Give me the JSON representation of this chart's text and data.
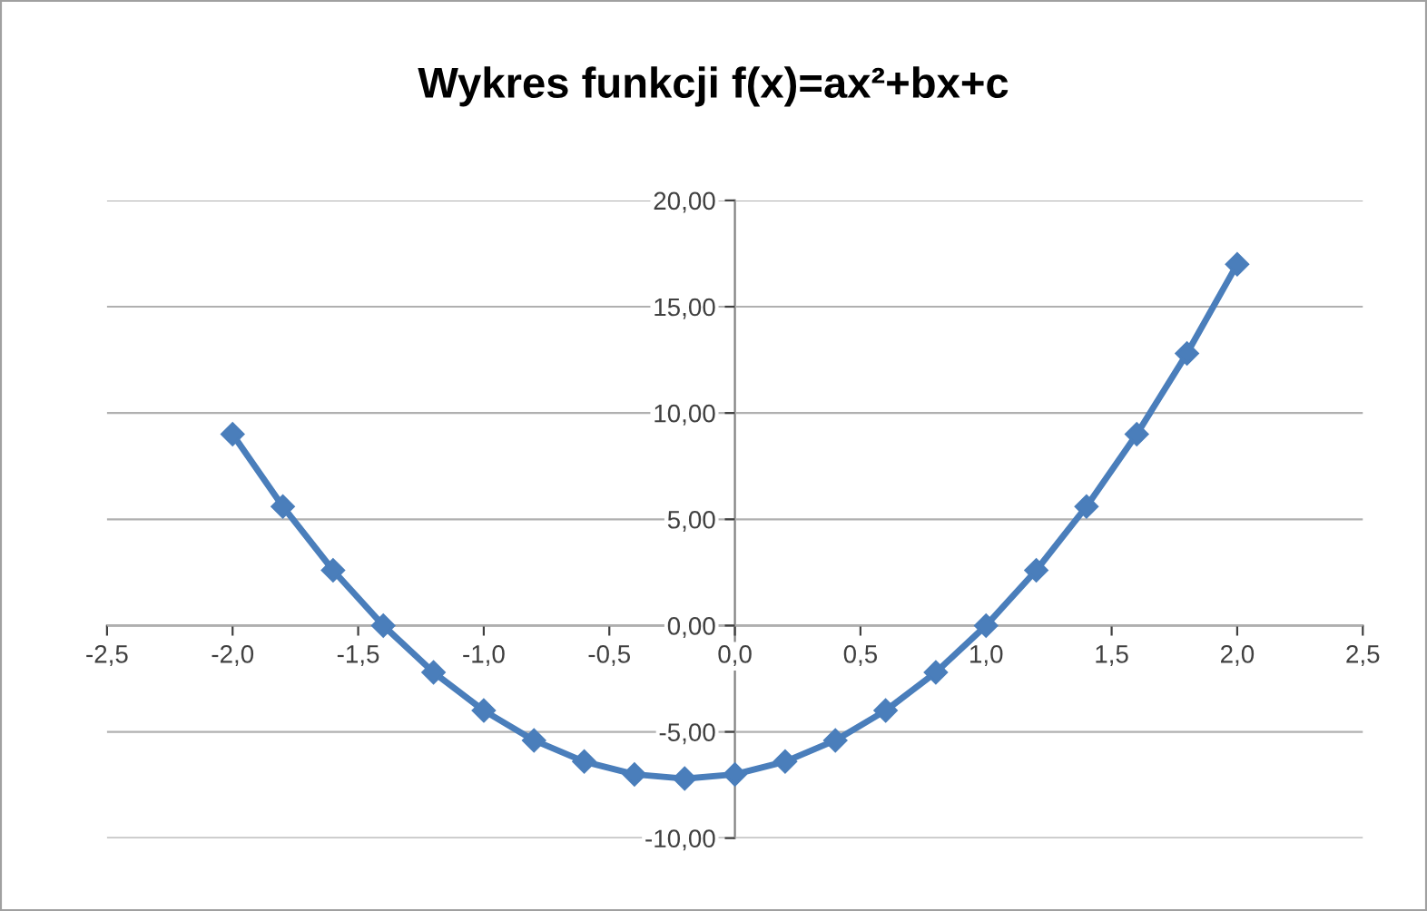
{
  "chart_data": {
    "type": "line",
    "title": "Wykres funkcji f(x)=ax²+bx+c",
    "x": [
      -2.0,
      -1.8,
      -1.6,
      -1.4,
      -1.2,
      -1.0,
      -0.8,
      -0.6,
      -0.4,
      -0.2,
      0.0,
      0.2,
      0.4,
      0.6,
      0.8,
      1.0,
      1.2,
      1.4,
      1.6,
      1.8,
      2.0
    ],
    "series": [
      {
        "color": "#4a7ebb",
        "values": [
          9,
          5.6,
          2.6,
          0,
          -2.2,
          -4,
          -5.4,
          -6.4,
          -7,
          -7.2,
          -7,
          -6.4,
          -5.4,
          -4,
          -2.2,
          0,
          2.6,
          5.6,
          9,
          12.8,
          17
        ]
      }
    ],
    "xlim": [
      -2.5,
      2.5
    ],
    "xticks": [
      {
        "value": -2.5,
        "label": "-2,5"
      },
      {
        "value": -2.0,
        "label": "-2,0"
      },
      {
        "value": -1.5,
        "label": "-1,5"
      },
      {
        "value": -1.0,
        "label": "-1,0"
      },
      {
        "value": -0.5,
        "label": "-0,5"
      },
      {
        "value": 0.0,
        "label": "0,0"
      },
      {
        "value": 0.5,
        "label": "0,5"
      },
      {
        "value": 1.0,
        "label": "1,0"
      },
      {
        "value": 1.5,
        "label": "1,5"
      },
      {
        "value": 2.0,
        "label": "2,0"
      },
      {
        "value": 2.5,
        "label": "2,5"
      }
    ],
    "ylim": [
      -10,
      20
    ],
    "yticks": [
      {
        "value": -10,
        "label": "-10,00"
      },
      {
        "value": -5,
        "label": "-5,00"
      },
      {
        "value": 0,
        "label": "0,00"
      },
      {
        "value": 5,
        "label": "5,00"
      },
      {
        "value": 10,
        "label": "10,00"
      },
      {
        "value": 15,
        "label": "15,00"
      },
      {
        "value": 20,
        "label": "20,00"
      }
    ],
    "grid": "y",
    "marker": "diamond",
    "line_style": "solid",
    "legend": false
  }
}
